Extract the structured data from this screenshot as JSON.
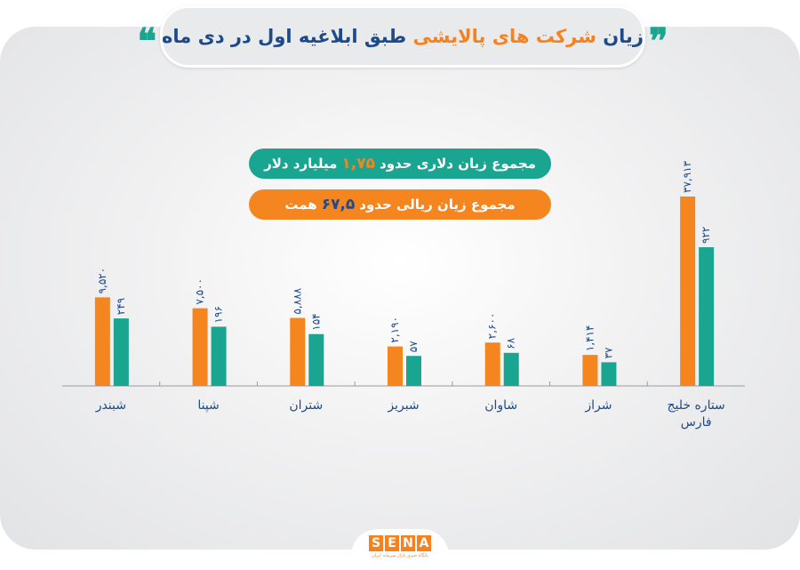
{
  "title": {
    "part1": "زیان",
    "part2": "شرکت های پالایشی",
    "part3": "طبق ابلاغیه اول در دی ماه",
    "quote_open": "❝",
    "quote_close": "❞"
  },
  "summary": {
    "dollar": {
      "prefix": "مجموع زیان دلاری حدود",
      "value": "۱,۷۵",
      "suffix": "میلیارد دلار"
    },
    "rial": {
      "prefix": "مجموع زیان ریالی حدود",
      "value": "۶۷,۵",
      "suffix": "همت"
    }
  },
  "logo": {
    "text": "SENA",
    "subtitle": "پایگاه خبری بازار سرمایه ایران"
  },
  "colors": {
    "orange": "#f5851f",
    "teal": "#1aa591",
    "blue": "#1c4a8a"
  },
  "chart_data": {
    "type": "bar",
    "grouped": true,
    "categories": [
      "شبندر",
      "شپنا",
      "شتران",
      "شبریز",
      "شاوان",
      "شراز",
      "ستاره خلیج فارس"
    ],
    "series": [
      {
        "color": "#f5851f",
        "values": [
          9520,
          7500,
          5888,
          2190,
          2600,
          1414,
          37913
        ],
        "labels": [
          "۹,۵۲۰",
          "۷,۵۰۰",
          "۵,۸۸۸",
          "۲,۱۹۰",
          "۲,۶۰۰",
          "۱,۴۱۴",
          "۳۷,۹۱۳"
        ]
      },
      {
        "color": "#1aa591",
        "values": [
          249,
          196,
          154,
          57,
          68,
          37,
          922
        ],
        "labels": [
          "۲۴۹",
          "۱۹۶",
          "۱۵۴",
          "۵۷",
          "۶۸",
          "۳۷",
          "۹۲۲"
        ]
      }
    ],
    "grid": false,
    "legend": "none",
    "data_labels": true
  }
}
